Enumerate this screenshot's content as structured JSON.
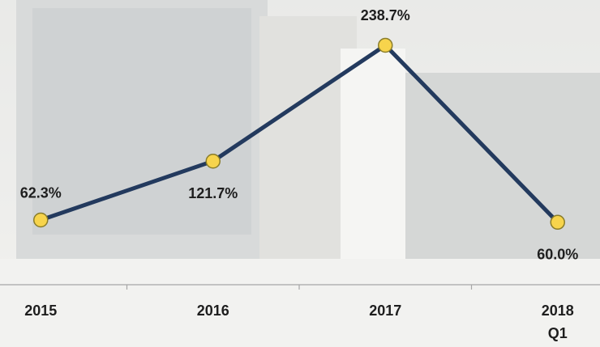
{
  "chart_data": {
    "type": "line",
    "categories": [
      "2015",
      "2016",
      "2017",
      "2018 Q1"
    ],
    "series": [
      {
        "color": "#233a5e",
        "marker_color": "#f7d44c",
        "values": [
          62.3,
          121.7,
          238.7,
          60.0
        ],
        "value_labels": [
          "62.3%",
          "121.7%",
          "238.7%",
          "60.0%"
        ]
      }
    ]
  }
}
